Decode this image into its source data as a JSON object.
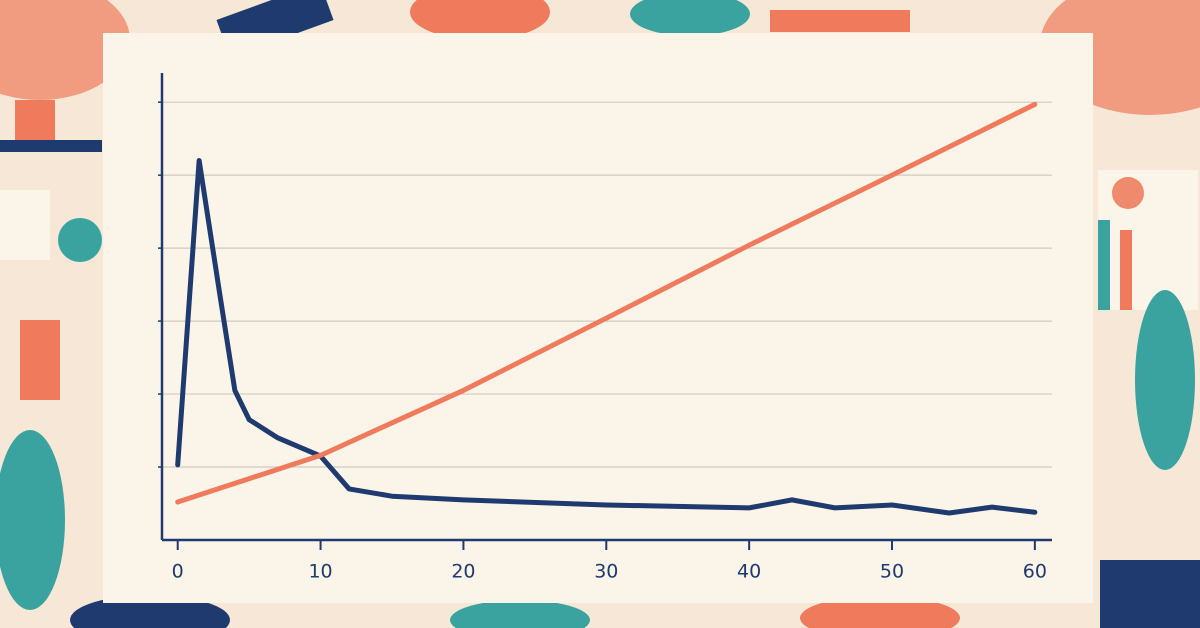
{
  "chart_data": {
    "type": "line",
    "xlim": [
      -1.1,
      61.2
    ],
    "xticks": [
      0,
      10,
      20,
      30,
      40,
      50,
      60
    ],
    "ylim": [
      0,
      6.4
    ],
    "yticks": [
      1,
      2,
      3,
      4,
      5,
      6
    ],
    "y_tick_labels": false,
    "grid": true,
    "series": [
      {
        "color": "#1f3a6e",
        "x": [
          0,
          1.5,
          3,
          4,
          5,
          7,
          10,
          12,
          15,
          20,
          30,
          40,
          43,
          46,
          50,
          54,
          57,
          60
        ],
        "values": [
          1.03,
          5.2,
          3.3,
          2.05,
          1.65,
          1.4,
          1.15,
          0.7,
          0.6,
          0.55,
          0.48,
          0.44,
          0.55,
          0.44,
          0.48,
          0.37,
          0.45,
          0.38
        ]
      },
      {
        "color": "#f07a5c",
        "x": [
          0,
          10,
          20,
          30,
          40,
          50,
          60
        ],
        "values": [
          0.52,
          1.16,
          2.05,
          3.04,
          4.04,
          5.0,
          5.97
        ]
      }
    ]
  }
}
